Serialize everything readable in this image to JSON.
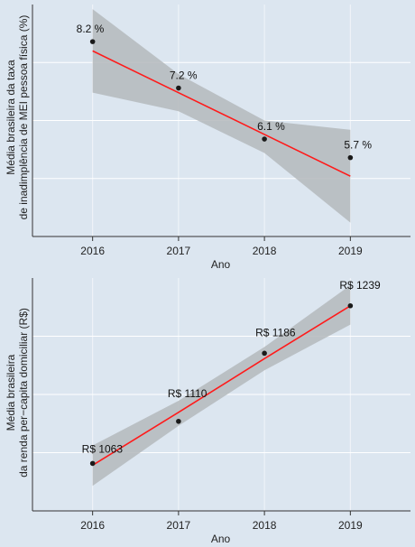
{
  "chart_data": [
    {
      "type": "scatter",
      "x": [
        2016,
        2017,
        2018,
        2019
      ],
      "values": [
        8.2,
        7.2,
        6.1,
        5.7
      ],
      "data_labels": [
        "8.2 %",
        "7.2 %",
        "6.1 %",
        "5.7 %"
      ],
      "trend": [
        8.0,
        7.1,
        6.2,
        5.3
      ],
      "band_upper": [
        8.9,
        7.5,
        6.5,
        6.3
      ],
      "band_lower": [
        7.1,
        6.7,
        5.8,
        4.3
      ],
      "tick_labels": [
        "2016",
        "2017",
        "2018",
        "2019"
      ],
      "xlabel": "Ano",
      "ylabel_lines": [
        "Média brasileira da taxa",
        "de inadimplência de MEI pessoa física (%)"
      ],
      "xlim": [
        2015.3,
        2019.7
      ],
      "ylim": [
        4.0,
        9.0
      ],
      "grid": true
    },
    {
      "type": "scatter",
      "x": [
        2016,
        2017,
        2018,
        2019
      ],
      "values": [
        1063,
        1110,
        1186,
        1239
      ],
      "data_labels": [
        "R$  1063",
        "R$  1110",
        "R$  1186",
        "R$  1239"
      ],
      "trend": [
        1061,
        1120,
        1180,
        1239
      ],
      "band_upper": [
        1083,
        1133,
        1193,
        1262
      ],
      "band_lower": [
        1038,
        1105,
        1167,
        1218
      ],
      "tick_labels": [
        "2016",
        "2017",
        "2018",
        "2019"
      ],
      "xlabel": "Ano",
      "ylabel_lines": [
        "Média brasileira",
        "da renda per−capita domiciliar (R$)"
      ],
      "xlim": [
        2015.3,
        2019.7
      ],
      "ylim": [
        1010,
        1270
      ],
      "grid": true
    }
  ],
  "colors": {
    "background": "#dce6f0",
    "band": "#b4b8bc",
    "trend_line": "#ff1a1a",
    "point": "#1a1a1a",
    "grid": "#ffffff",
    "axis": "#333333"
  }
}
